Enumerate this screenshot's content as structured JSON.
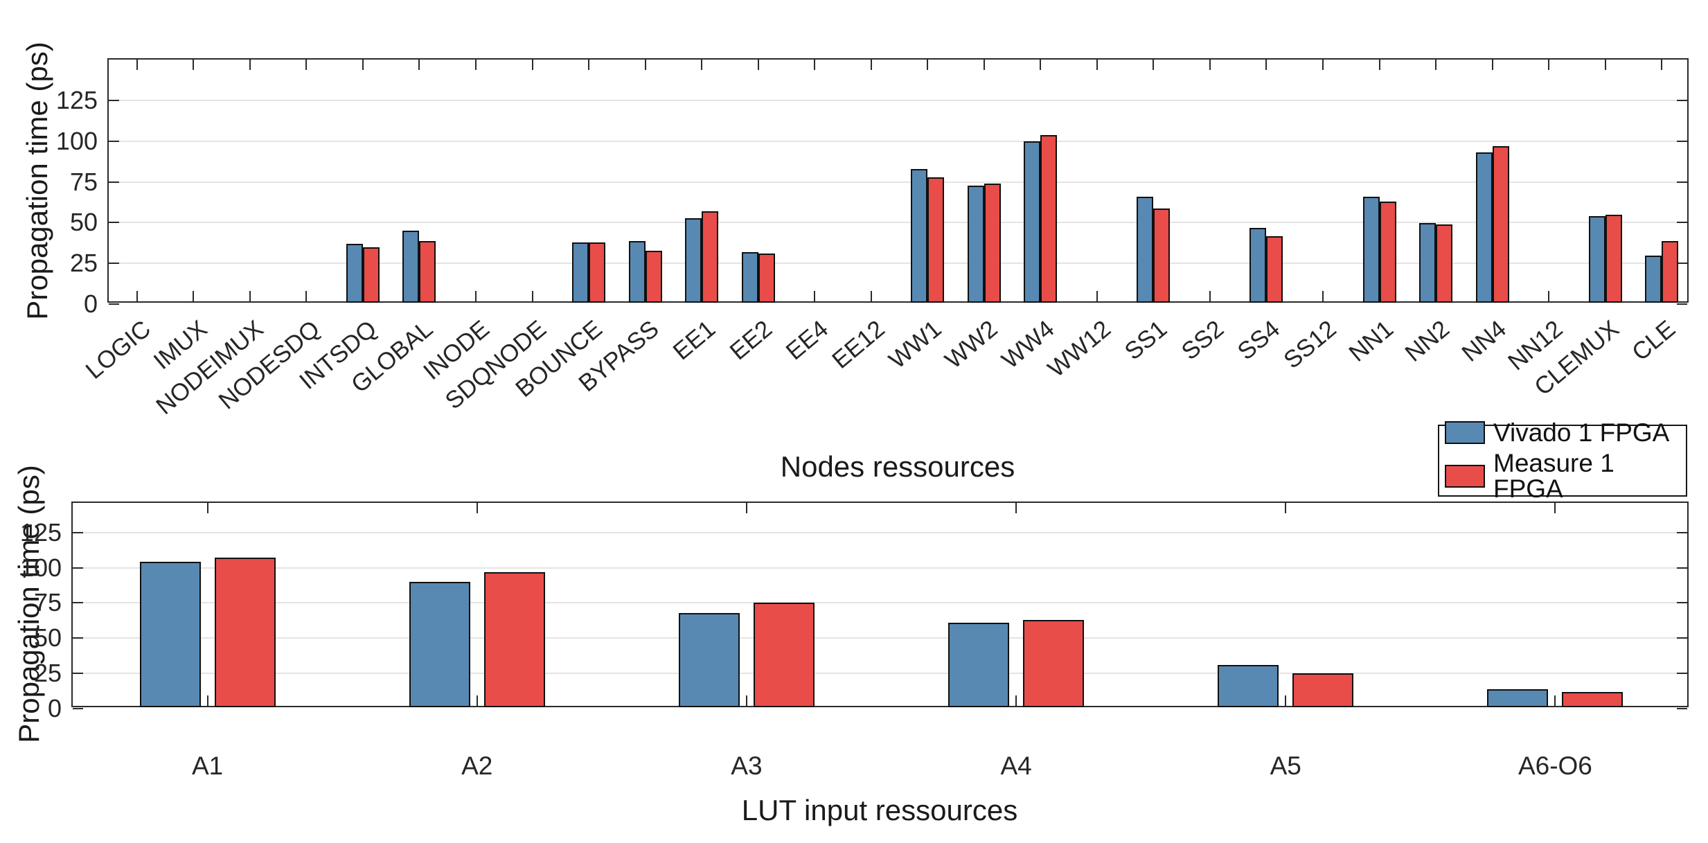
{
  "figure": {
    "background": "#ffffff"
  },
  "colors": {
    "vivado_blue": "#5789B3",
    "measure_red": "#E84D49",
    "grid": "#E4E4E4",
    "axis": "#2A2A2A",
    "bar_edge": "#101010"
  },
  "legend": {
    "items": [
      {
        "label": "Vivado 1 FPGA",
        "color": "#5789B3"
      },
      {
        "label": "Measure 1 FPGA",
        "color": "#E84D49"
      }
    ]
  },
  "chart_data": [
    {
      "type": "bar",
      "xlabel": "Nodes ressources",
      "ylabel": "Propagation time (ps)",
      "categories": [
        "LOGIC",
        "IMUX",
        "NODEIMUX",
        "NODESDQ",
        "INTSDQ",
        "GLOBAL",
        "INODE",
        "SDQNODE",
        "BOUNCE",
        "BYPASS",
        "EE1",
        "EE2",
        "EE4",
        "EE12",
        "WW1",
        "WW2",
        "WW4",
        "WW12",
        "SS1",
        "SS2",
        "SS4",
        "SS12",
        "NN1",
        "NN2",
        "NN4",
        "NN12",
        "CLEMUX",
        "CLE"
      ],
      "series": [
        {
          "name": "Vivado 1 FPGA",
          "color": "#5789B3",
          "values": [
            0,
            0,
            0,
            0,
            36,
            44,
            0,
            0,
            37,
            38,
            52,
            31,
            0,
            0,
            82,
            72,
            99,
            0,
            65,
            0,
            46,
            0,
            65,
            49,
            92,
            0,
            53,
            29
          ]
        },
        {
          "name": "Measure 1 FPGA",
          "color": "#E84D49",
          "values": [
            0,
            0,
            0,
            0,
            34,
            38,
            0,
            0,
            37,
            32,
            56,
            30,
            0,
            0,
            77,
            73,
            103,
            0,
            58,
            0,
            41,
            0,
            62,
            48,
            96,
            0,
            54,
            38
          ]
        }
      ],
      "yticks": [
        0,
        25,
        50,
        75,
        100,
        125
      ],
      "ylim": [
        0,
        150
      ],
      "grid": "horizontal",
      "xtick_rotation": 40,
      "legend_position": "outside-bottom-right"
    },
    {
      "type": "bar",
      "xlabel": "LUT input ressources",
      "ylabel": "Propagation time (ps)",
      "categories": [
        "A1",
        "A2",
        "A3",
        "A4",
        "A5",
        "A6-O6"
      ],
      "series": [
        {
          "name": "Vivado 1 FPGA",
          "color": "#5789B3",
          "values": [
            103,
            89,
            67,
            60,
            30,
            13
          ]
        },
        {
          "name": "Measure 1 FPGA",
          "color": "#E84D49",
          "values": [
            106,
            96,
            74,
            62,
            24,
            11
          ]
        }
      ],
      "yticks": [
        0,
        25,
        50,
        75,
        100,
        125
      ],
      "ylim": [
        0,
        146
      ],
      "grid": "horizontal",
      "xtick_rotation": 0,
      "legend_position": "shared-with-top"
    }
  ]
}
